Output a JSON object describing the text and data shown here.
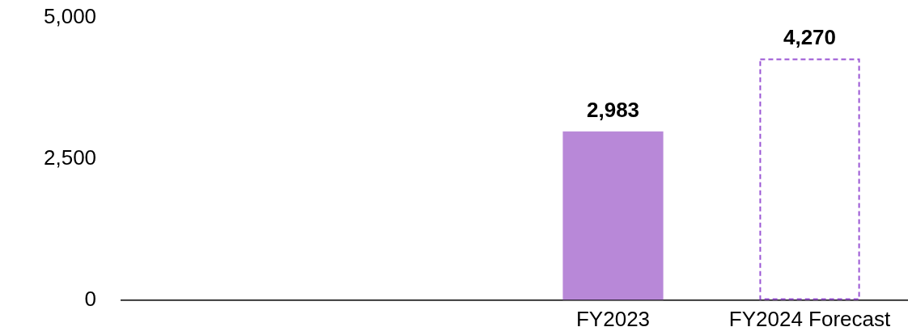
{
  "chart_data": {
    "type": "bar",
    "categories": [
      null,
      null,
      "FY2023",
      "FY2024 Forecast"
    ],
    "series": [
      {
        "color": "#b888d8",
        "values": [
          null,
          null,
          2983,
          null
        ],
        "value_labels": [
          null,
          null,
          "2,983",
          null
        ]
      },
      {
        "color": "#9a55d4",
        "line_style": "dashed",
        "values": [
          null,
          null,
          null,
          4270
        ],
        "value_labels": [
          null,
          null,
          null,
          "4,270"
        ]
      }
    ],
    "ylim": [
      0,
      5000
    ],
    "yticks": [
      0,
      {
        "value": 2500,
        "label": "2,500"
      },
      {
        "value": 5000,
        "label": "5,000"
      }
    ]
  }
}
